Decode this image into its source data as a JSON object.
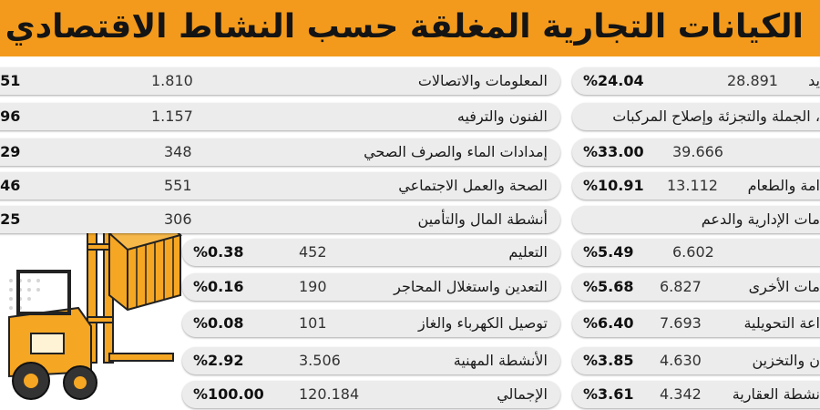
{
  "title": "الكيانات التجارية المغلقة حسب النشاط الاقتصادي",
  "icon": "forklift-icon",
  "colors": {
    "banner": "#f39a1c",
    "row": "#ececec",
    "machine": "#f5a623"
  },
  "left_table": [
    {
      "activity": "المعلومات والاتصالات",
      "count": "1.810",
      "share": ".51"
    },
    {
      "activity": "الفنون والترفيه",
      "count": "1.157",
      "share": ".96"
    },
    {
      "activity": "إمدادات الماء والصرف الصحي",
      "count": "348",
      "share": ".29"
    },
    {
      "activity": "الصحة والعمل الاجتماعي",
      "count": "551",
      "share": ".46"
    },
    {
      "activity": "أنشطة المال والتأمين",
      "count": "306",
      "share": ".25"
    },
    {
      "activity": "التعليم",
      "count": "452",
      "share": "%0.38"
    },
    {
      "activity": "التعدين واستغلال المحاجر",
      "count": "190",
      "share": "%0.16"
    },
    {
      "activity": "توصيل الكهرباء والغاز",
      "count": "101",
      "share": "%0.08"
    },
    {
      "activity": "الأنشطة المهنية",
      "count": "3.506",
      "share": "%2.92"
    },
    {
      "activity": "الإجمالي",
      "count": "120.184",
      "share": "%100.00"
    }
  ],
  "right_table": [
    {
      "activity": "يد",
      "count": "28.891",
      "share": "%24.04"
    },
    {
      "activity": "، الجملة والتجزئة وإصلاح المركبات",
      "count": "",
      "share": ""
    },
    {
      "activity": "",
      "count": "39.666",
      "share": "%33.00"
    },
    {
      "activity": "امة والطعام",
      "count": "13.112",
      "share": "%10.91"
    },
    {
      "activity": "مات الإدارية والدعم",
      "count": "",
      "share": ""
    },
    {
      "activity": "",
      "count": "6.602",
      "share": "%5.49"
    },
    {
      "activity": "مات الأخرى",
      "count": "6.827",
      "share": "%5.68"
    },
    {
      "activity": "اعة التحويلية",
      "count": "7.693",
      "share": "%6.40"
    },
    {
      "activity": "ن والتخزين",
      "count": "4.630",
      "share": "%3.85"
    },
    {
      "activity": "نشطة العقارية",
      "count": "4.342",
      "share": "%3.61"
    }
  ]
}
